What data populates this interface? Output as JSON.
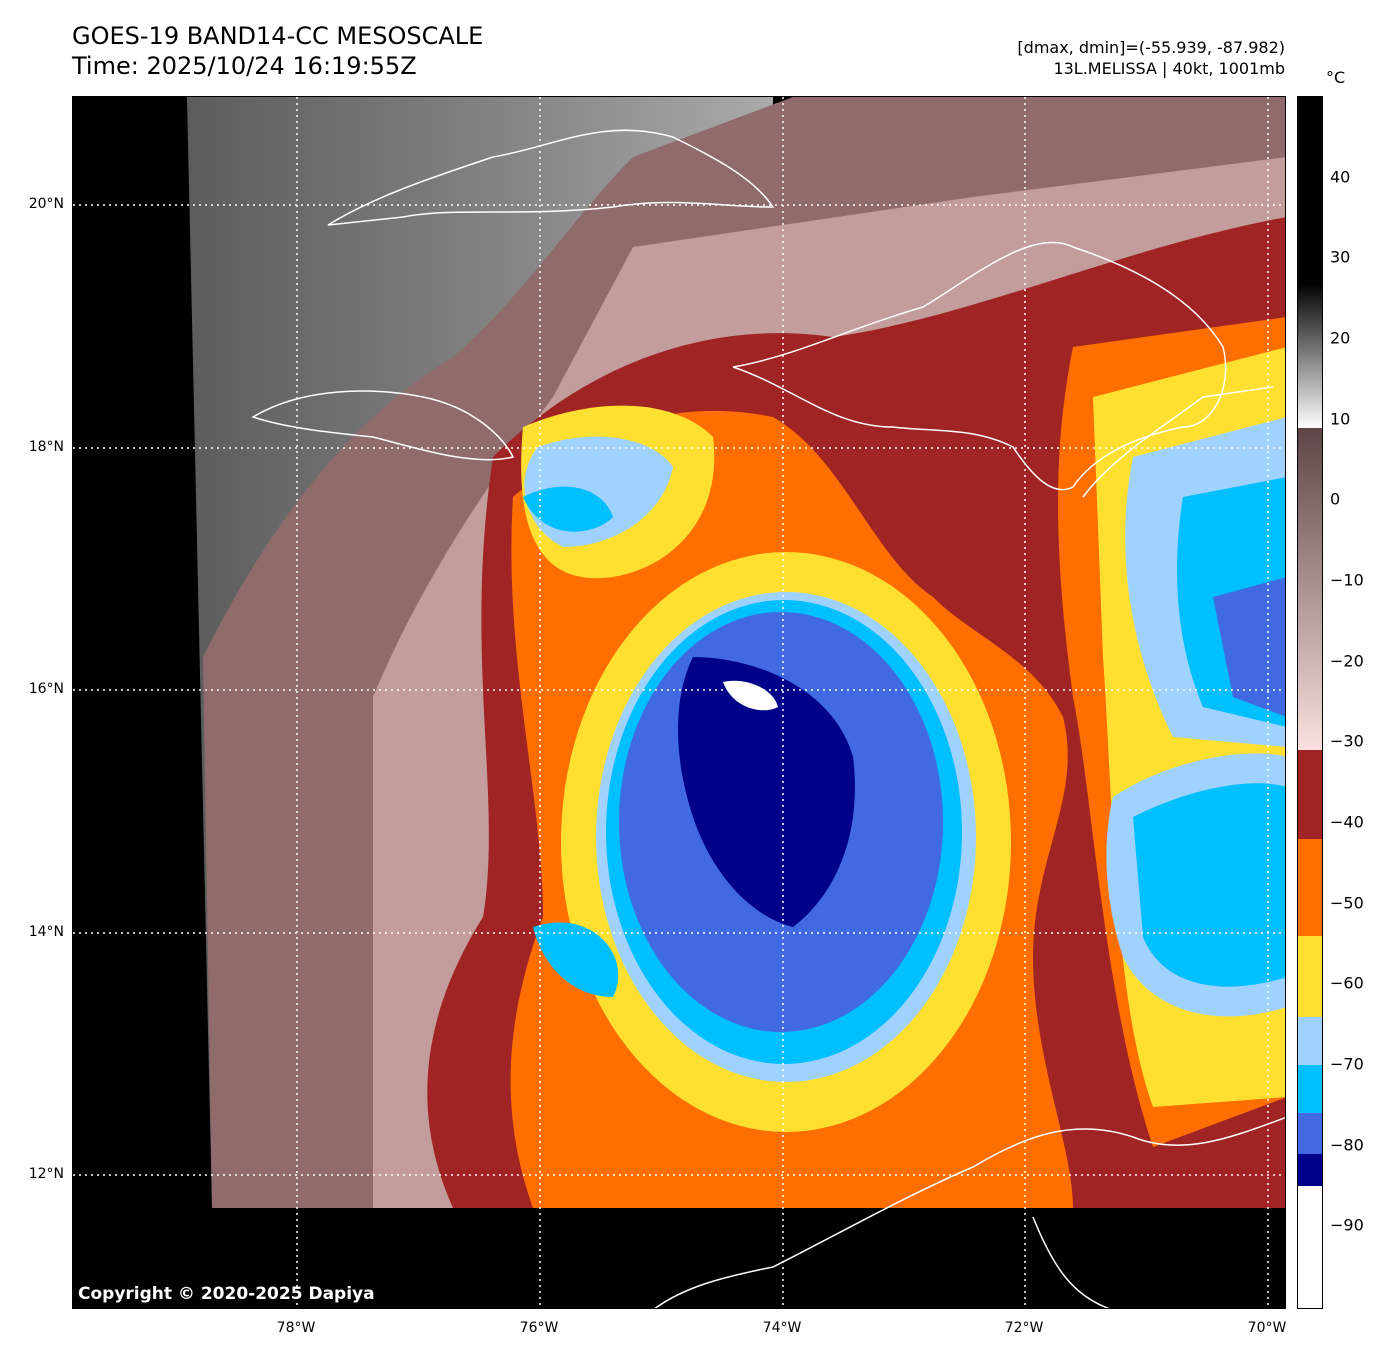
{
  "header": {
    "title": "GOES-19 BAND14-CC MESOSCALE",
    "time": "Time: 2025/10/24 16:19:55Z",
    "range": "[dmax, dmin]=(-55.939, -87.982)",
    "storm": "13L.MELISSA | 40kt, 1001mb"
  },
  "map": {
    "lat_labels": [
      "20°N",
      "18°N",
      "16°N",
      "14°N",
      "12°N"
    ],
    "lon_labels": [
      "78°W",
      "76°W",
      "74°W",
      "72°W",
      "70°W"
    ],
    "copyright": "Copyright © 2020-2025 Dapiya"
  },
  "colorbar": {
    "unit": "°C",
    "ticks": [
      "40",
      "30",
      "20",
      "10",
      "0",
      "−10",
      "−20",
      "−30",
      "−40",
      "−50",
      "−60",
      "−70",
      "−80",
      "−90"
    ],
    "range": [
      -100,
      50
    ],
    "bands": [
      {
        "from": -100,
        "to": -85,
        "color": "#ffffff"
      },
      {
        "from": -85,
        "to": -81,
        "color": "#00008b"
      },
      {
        "from": -81,
        "to": -76,
        "color": "#4169e1"
      },
      {
        "from": -76,
        "to": -70,
        "color": "#00bfff"
      },
      {
        "from": -70,
        "to": -64,
        "color": "#a0d2ff"
      },
      {
        "from": -64,
        "to": -54,
        "color": "#ffe030"
      },
      {
        "from": -54,
        "to": -42,
        "color": "#ff6e00"
      },
      {
        "from": -42,
        "to": -31,
        "color": "#a02424"
      },
      {
        "from": -31,
        "to": 9,
        "gradient": [
          "#fbe0e0",
          "#5e4444"
        ]
      },
      {
        "from": 9,
        "to": 27,
        "gradient": [
          "#ffffff",
          "#000000"
        ]
      },
      {
        "from": 27,
        "to": 50,
        "color": "#000000"
      }
    ]
  }
}
